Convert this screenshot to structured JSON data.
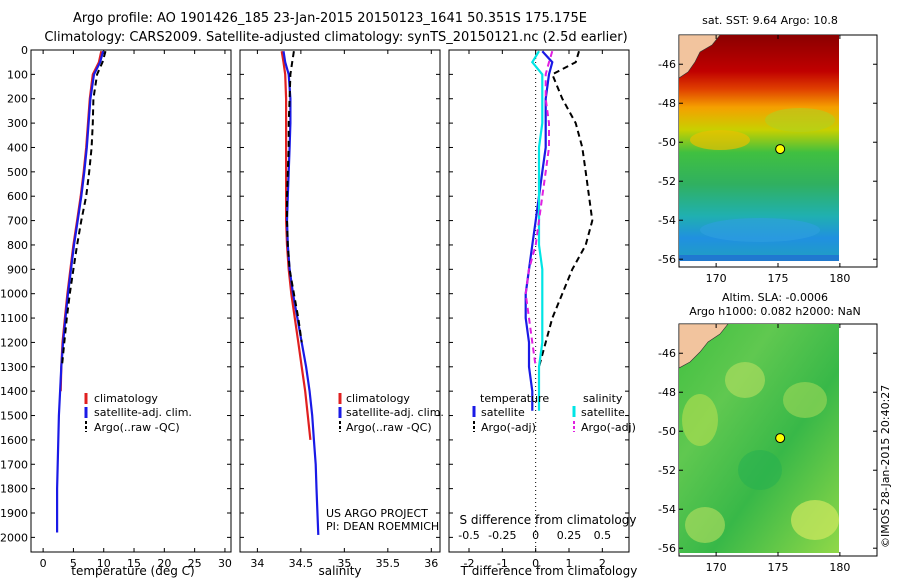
{
  "header": {
    "line1": "Argo profile: AO 1901426_185 23-Jan-2015 20150123_1641 50.351S 175.175E",
    "line2": "Climatology: CARS2009. Satellite-adjusted climatology: synTS_20150121.nc (2.5d earlier)"
  },
  "colors": {
    "climatology": "#e02020",
    "satellite": "#1a1ae6",
    "argo": "#000000",
    "satellite_s": "#00e5e5",
    "argo_s": "#e020e0"
  },
  "chart_data": [
    {
      "type": "line",
      "xlabel": "temperature (deg C)",
      "xlim": [
        -2,
        31
      ],
      "ylim": [
        2060,
        0
      ],
      "xticks": [
        "0",
        "5",
        "10",
        "15",
        "20",
        "25",
        "30"
      ],
      "xtick_values": [
        0,
        5,
        10,
        15,
        20,
        25,
        30
      ],
      "yticks": [
        "0",
        "100",
        "200",
        "300",
        "400",
        "500",
        "600",
        "700",
        "800",
        "900",
        "1000",
        "1100",
        "1200",
        "1300",
        "1400",
        "1500",
        "1600",
        "1700",
        "1800",
        "1900",
        "2000"
      ],
      "legend": [
        "climatology",
        "satellite-adj. clim.",
        "Argo(..raw -QC)"
      ],
      "series": [
        {
          "name": "climatology",
          "style": "solid",
          "color": "#e02020",
          "x": [
            9.6,
            9.2,
            8.2,
            7.7,
            7.4,
            7.1,
            6.7,
            6.2,
            5.6,
            5.0,
            4.5,
            4.0,
            3.6,
            3.2,
            3.0,
            2.9
          ],
          "y": [
            5,
            50,
            100,
            200,
            300,
            400,
            500,
            600,
            700,
            800,
            900,
            1000,
            1100,
            1200,
            1300,
            1400
          ]
        },
        {
          "name": "satellite-adj. clim.",
          "style": "solid",
          "color": "#1a1ae6",
          "x": [
            9.9,
            9.4,
            8.4,
            7.8,
            7.5,
            7.2,
            6.8,
            6.3,
            5.7,
            5.1,
            4.6,
            4.1,
            3.7,
            3.3,
            3.0,
            2.8,
            2.6,
            2.5,
            2.4,
            2.3,
            2.3
          ],
          "y": [
            5,
            50,
            100,
            200,
            300,
            400,
            500,
            600,
            700,
            800,
            900,
            1000,
            1100,
            1200,
            1300,
            1400,
            1500,
            1600,
            1700,
            1800,
            1980
          ]
        },
        {
          "name": "Argo(..raw -QC)",
          "style": "dashed",
          "color": "#000000",
          "x": [
            10.3,
            9.8,
            8.9,
            8.3,
            8.2,
            8.0,
            7.6,
            7.1,
            6.3,
            5.6,
            5.0,
            4.4,
            3.9,
            3.5,
            3.1
          ],
          "y": [
            5,
            50,
            100,
            200,
            300,
            400,
            500,
            600,
            700,
            800,
            900,
            1000,
            1100,
            1200,
            1300
          ]
        }
      ]
    },
    {
      "type": "line",
      "xlabel": "salinity",
      "xlim": [
        33.8,
        36.1
      ],
      "ylim": [
        2060,
        0
      ],
      "xticks": [
        "34",
        "34.5",
        "35",
        "35.5",
        "36"
      ],
      "xtick_values": [
        34,
        34.5,
        35,
        35.5,
        36
      ],
      "legend": [
        "climatology",
        "satellite-adj. clim.",
        "Argo(..raw -QC)"
      ],
      "annotation": [
        "US ARGO PROJECT",
        "PI: DEAN ROEMMICH"
      ],
      "series": [
        {
          "name": "climatology",
          "style": "solid",
          "color": "#e02020",
          "x": [
            34.28,
            34.3,
            34.32,
            34.33,
            34.33,
            34.33,
            34.33,
            34.33,
            34.33,
            34.34,
            34.36,
            34.39,
            34.43,
            34.47,
            34.51,
            34.55,
            34.58,
            34.61
          ],
          "y": [
            5,
            50,
            100,
            200,
            300,
            400,
            500,
            600,
            700,
            800,
            900,
            1000,
            1100,
            1200,
            1300,
            1400,
            1500,
            1600
          ]
        },
        {
          "name": "satellite-adj. clim.",
          "style": "solid",
          "color": "#1a1ae6",
          "x": [
            34.3,
            34.32,
            34.36,
            34.38,
            34.38,
            34.37,
            34.36,
            34.35,
            34.34,
            34.35,
            34.37,
            34.41,
            34.46,
            34.51,
            34.56,
            34.6,
            34.63,
            34.65,
            34.67,
            34.68,
            34.7
          ],
          "y": [
            5,
            50,
            100,
            200,
            300,
            400,
            500,
            600,
            700,
            800,
            900,
            1000,
            1100,
            1200,
            1300,
            1400,
            1500,
            1600,
            1700,
            1800,
            1990
          ]
        },
        {
          "name": "Argo(..raw -QC)",
          "style": "dashed",
          "color": "#000000",
          "x": [
            34.42,
            34.4,
            34.38,
            34.37,
            34.36,
            34.36,
            34.35,
            34.34,
            34.34,
            34.35,
            34.37,
            34.42,
            34.47,
            34.51
          ],
          "y": [
            5,
            50,
            100,
            200,
            300,
            400,
            500,
            600,
            700,
            800,
            900,
            1000,
            1100,
            1200
          ]
        }
      ]
    },
    {
      "type": "line",
      "xlabel": "T difference from climatology",
      "xlabel_top": "S difference from climatology",
      "xlim": [
        -2.6,
        2.8
      ],
      "ylim": [
        2060,
        0
      ],
      "xticks": [
        "-2",
        "-1",
        "0",
        "1",
        "2"
      ],
      "xtick_values": [
        -2,
        -1,
        0,
        1,
        2
      ],
      "xticks_top": [
        "-0.5",
        "-0.25",
        "0",
        "0.25",
        "0.5"
      ],
      "xtick_top_values": [
        -2,
        -1,
        0,
        1,
        2
      ],
      "legend_title_t": "temperature",
      "legend_title_s": "salinity",
      "legend_t": [
        "satellite",
        "Argo(-adj)"
      ],
      "legend_s": [
        "satellite",
        "Argo(-adj)"
      ],
      "series": [
        {
          "name": "T satellite",
          "style": "solid",
          "color": "#1a1ae6",
          "x": [
            0.2,
            0.5,
            0.4,
            0.3,
            0.3,
            0.3,
            0.2,
            0.1,
            0.0,
            -0.1,
            -0.2,
            -0.3,
            -0.3,
            -0.2,
            -0.2,
            -0.1,
            -0.1
          ],
          "y": [
            5,
            50,
            100,
            200,
            300,
            400,
            500,
            600,
            700,
            800,
            900,
            1000,
            1100,
            1200,
            1300,
            1400,
            1480
          ]
        },
        {
          "name": "T Argo(-adj)",
          "style": "dashed",
          "color": "#000000",
          "x": [
            1.3,
            1.2,
            0.5,
            0.8,
            1.2,
            1.4,
            1.5,
            1.6,
            1.7,
            1.5,
            1.1,
            0.8,
            0.5,
            0.3,
            0.1
          ],
          "y": [
            5,
            50,
            100,
            200,
            300,
            400,
            500,
            600,
            700,
            800,
            900,
            1000,
            1100,
            1200,
            1300
          ]
        },
        {
          "name": "S satellite",
          "style": "solid",
          "color": "#00e5e5",
          "x": [
            0.1,
            -0.1,
            0.2,
            0.2,
            0.2,
            0.1,
            0.1,
            0.1,
            0.1,
            0.1,
            0.2,
            0.2,
            0.2,
            0.2,
            0.1,
            0.1
          ],
          "y": [
            5,
            50,
            100,
            200,
            300,
            400,
            500,
            600,
            700,
            800,
            900,
            1000,
            1100,
            1200,
            1300,
            1480
          ]
        },
        {
          "name": "S Argo(-adj)",
          "style": "dashed",
          "color": "#e020e0",
          "x": [
            0.5,
            0.4,
            0.3,
            0.3,
            0.4,
            0.4,
            0.3,
            0.2,
            0.1,
            0.0,
            -0.2,
            -0.3,
            -0.2,
            -0.1,
            0.0
          ],
          "y": [
            5,
            50,
            100,
            200,
            300,
            400,
            500,
            600,
            700,
            800,
            900,
            1000,
            1100,
            1200,
            1300
          ]
        }
      ]
    },
    {
      "type": "heatmap",
      "title": "sat. SST: 9.64  Argo: 10.8",
      "xticks": [
        "170",
        "175",
        "180"
      ],
      "yticks": [
        "-46",
        "-48",
        "-50",
        "-52",
        "-54",
        "-56"
      ],
      "xlim": [
        167,
        183
      ],
      "ylim": [
        -56.4,
        -44.5
      ],
      "marker": {
        "lon": 175.175,
        "lat": -50.351
      }
    },
    {
      "type": "heatmap",
      "title_line1": "Altim. SLA: -0.0006",
      "title_line2": "Argo h1000: 0.082  h2000: NaN",
      "xticks": [
        "170",
        "175",
        "180"
      ],
      "yticks": [
        "-46",
        "-48",
        "-50",
        "-52",
        "-54",
        "-56"
      ],
      "xlim": [
        167,
        183
      ],
      "ylim": [
        -56.4,
        -44.5
      ],
      "marker": {
        "lon": 175.175,
        "lat": -50.351
      }
    }
  ],
  "watermark": "©IMOS 28-Jan-2015 20:40:27"
}
